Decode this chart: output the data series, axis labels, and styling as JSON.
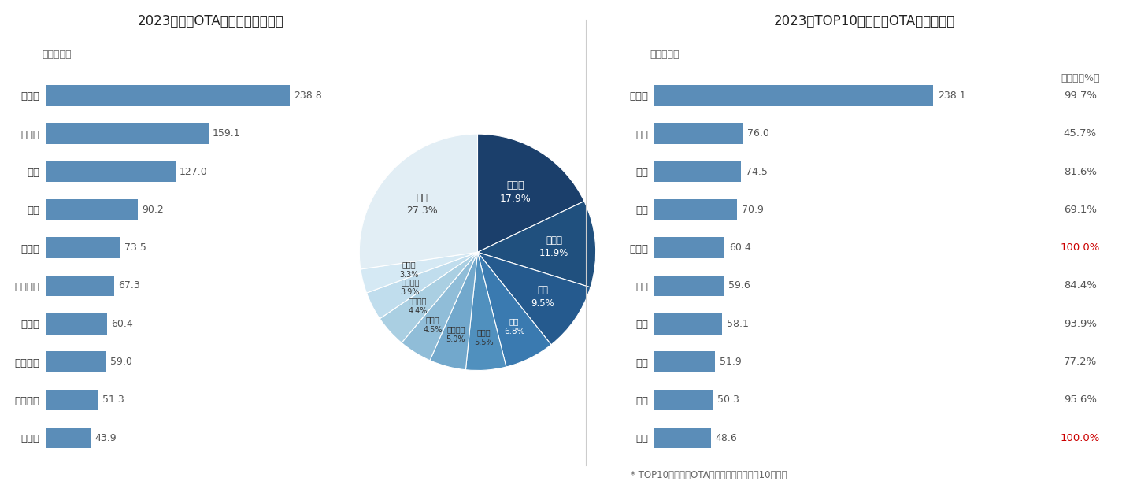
{
  "left_title": "2023年国内OTA竞争格局（标配）",
  "left_unit": "单位：万套",
  "bar_categories": [
    "比亚迪",
    "艾拉比",
    "哈曼",
    "长安",
    "亿咖通",
    "海纳新思",
    "特斯拉",
    "联友科技",
    "仙豆智能",
    "科络达"
  ],
  "bar_values": [
    238.8,
    159.1,
    127.0,
    90.2,
    73.5,
    67.3,
    60.4,
    59.0,
    51.3,
    43.9
  ],
  "bar_color": "#5B8DB8",
  "pie_labels": [
    "比亚迪",
    "艾拉比",
    "哈曼",
    "长安",
    "亿咖通",
    "海纳新思",
    "特斯拉",
    "联友科技",
    "仙豆智能",
    "科络达",
    "其他"
  ],
  "pie_pcts": [
    "17.9%",
    "11.9%",
    "9.5%",
    "6.8%",
    "5.5%",
    "5.0%",
    "4.5%",
    "4.4%",
    "3.9%",
    "3.3%",
    "27.3%"
  ],
  "pie_values": [
    17.9,
    11.9,
    9.5,
    6.8,
    5.5,
    5.0,
    4.5,
    4.4,
    3.9,
    3.3,
    27.3
  ],
  "pie_colors": [
    "#1b3f6b",
    "#20507e",
    "#255a8e",
    "#3a7ab0",
    "#5090be",
    "#72a8cc",
    "#90bdd8",
    "#aacfe2",
    "#c0dded",
    "#d5e9f4",
    "#e2eef5"
  ],
  "right_title": "2023年TOP10车企品牌OTA渗透率分析",
  "right_unit": "单位：万套",
  "right_rate_label": "渗透率（%）",
  "right_categories": [
    "比亚迪",
    "本田",
    "吉利",
    "长安",
    "特斯拉",
    "宝马",
    "奔驰",
    "日产",
    "别克",
    "哈弗"
  ],
  "right_values": [
    238.1,
    76.0,
    74.5,
    70.9,
    60.4,
    59.6,
    58.1,
    51.9,
    50.3,
    48.6
  ],
  "right_rates": [
    "99.7%",
    "45.7%",
    "81.6%",
    "69.1%",
    "100.0%",
    "84.4%",
    "93.9%",
    "77.2%",
    "95.6%",
    "100.0%"
  ],
  "right_rate_red": [
    false,
    false,
    false,
    false,
    true,
    false,
    false,
    false,
    false,
    true
  ],
  "right_bar_color": "#5B8DB8",
  "footnote": "* TOP10是指具备OTA功能车型销量排名前10的品牌",
  "bg_color": "#ffffff"
}
